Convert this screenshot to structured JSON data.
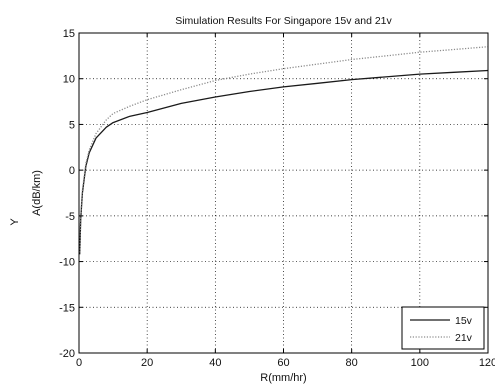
{
  "chart_data": {
    "type": "line",
    "title": "Simulation Results For Singapore 15v and 21v",
    "xlabel": "R(mm/hr)",
    "ylabel": "A(dB/km)",
    "side_label": "Y",
    "xlim": [
      0,
      120
    ],
    "ylim": [
      -20,
      15
    ],
    "xticks": [
      0,
      20,
      40,
      60,
      80,
      100,
      120
    ],
    "yticks": [
      -20,
      -15,
      -10,
      -5,
      0,
      5,
      10,
      15
    ],
    "xtick_labels": [
      "0",
      "20",
      "40",
      "60",
      "80",
      "100",
      "120"
    ],
    "ytick_labels": [
      "-20",
      "-15",
      "-10",
      "-5",
      "0",
      "5",
      "10",
      "15"
    ],
    "grid": true,
    "legend_position": "bottom-right",
    "series": [
      {
        "name": "15v",
        "color": "#1a1a1a",
        "dash": "solid",
        "x": [
          0.2,
          0.5,
          1,
          2,
          3,
          5,
          8,
          10,
          15,
          20,
          30,
          40,
          50,
          60,
          70,
          80,
          90,
          100,
          110,
          120
        ],
        "y": [
          -9.2,
          -5.4,
          -2.5,
          0.4,
          1.9,
          3.5,
          4.7,
          5.2,
          5.9,
          6.3,
          7.3,
          8.0,
          8.6,
          9.1,
          9.5,
          9.9,
          10.2,
          10.5,
          10.7,
          10.9
        ]
      },
      {
        "name": "21v",
        "color": "#8c8c8c",
        "dash": "dotted",
        "x": [
          0.2,
          0.5,
          1,
          2,
          3,
          5,
          8,
          10,
          15,
          20,
          30,
          40,
          50,
          60,
          70,
          80,
          90,
          100,
          110,
          120
        ],
        "y": [
          -9.0,
          -5.1,
          -2.2,
          0.7,
          2.2,
          4.0,
          5.5,
          6.2,
          7.0,
          7.7,
          8.8,
          9.8,
          10.5,
          11.1,
          11.6,
          12.1,
          12.5,
          12.9,
          13.2,
          13.5
        ]
      }
    ]
  }
}
